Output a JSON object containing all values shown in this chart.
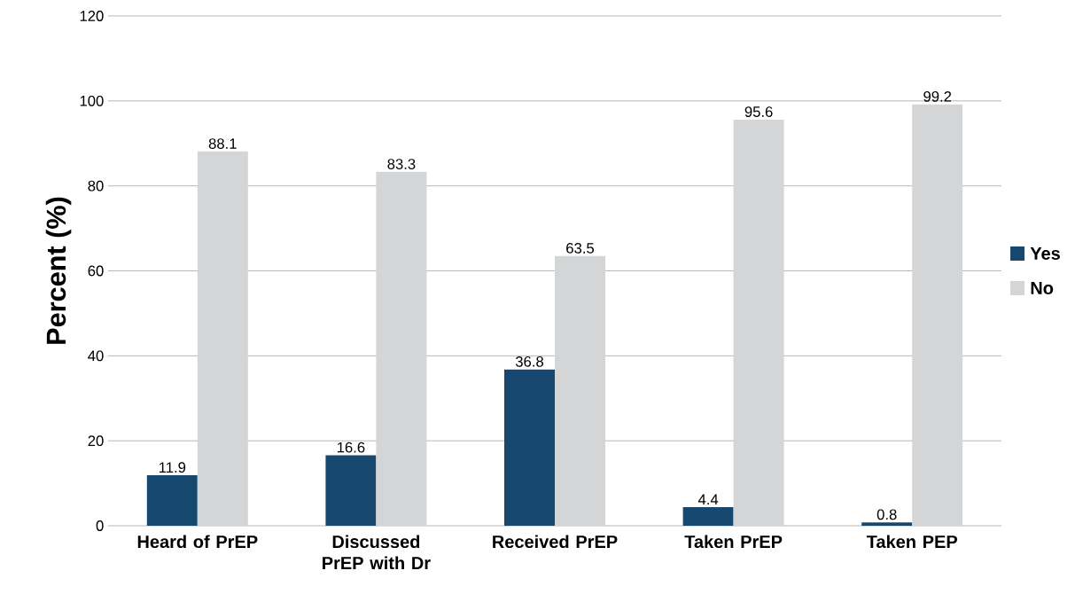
{
  "chart_data": {
    "type": "bar",
    "ylabel": "Percent (%)",
    "categories": [
      "Heard of PrEP",
      "Discussed PrEP with Dr",
      "Received PrEP",
      "Taken PrEP",
      "Taken PEP"
    ],
    "series": [
      {
        "name": "Yes",
        "color": "#17486f",
        "values": [
          11.9,
          16.6,
          36.8,
          4.4,
          0.8
        ]
      },
      {
        "name": "No",
        "color": "#d4d5d7",
        "values": [
          88.1,
          83.3,
          63.5,
          95.6,
          99.2
        ]
      }
    ],
    "ylim": [
      0,
      120
    ],
    "yticks": [
      0,
      20,
      40,
      60,
      80,
      100,
      120
    ],
    "grid": "y",
    "legend": "right",
    "data_labels": true
  }
}
